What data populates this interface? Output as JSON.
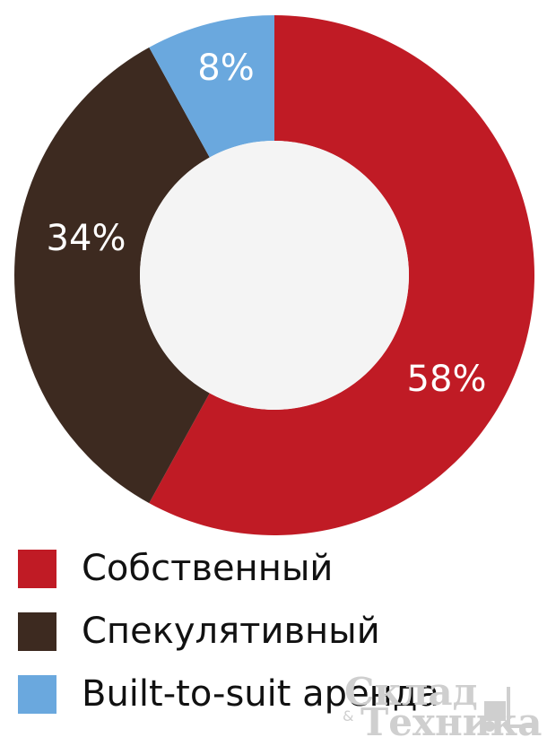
{
  "chart_data": {
    "type": "pie",
    "donut": true,
    "categories": [
      "Собственный",
      "Спекулятивный",
      "Built-to-suit аренда"
    ],
    "values": [
      58,
      34,
      8
    ],
    "labels": [
      "58%",
      "34%",
      "8%"
    ],
    "colors": [
      "#c01b25",
      "#3d2a20",
      "#6aa8de"
    ],
    "hole_color": "#f4f4f4",
    "legend_position": "bottom-left"
  },
  "legend": [
    {
      "label": "Собственный",
      "color": "#c01b25"
    },
    {
      "label": "Спекулятивный",
      "color": "#3d2a20"
    },
    {
      "label": "Built-to-suit аренда",
      "color": "#6aa8de"
    }
  ],
  "watermark": {
    "line1": "Склад",
    "amp": "&",
    "line2": "Техника"
  }
}
